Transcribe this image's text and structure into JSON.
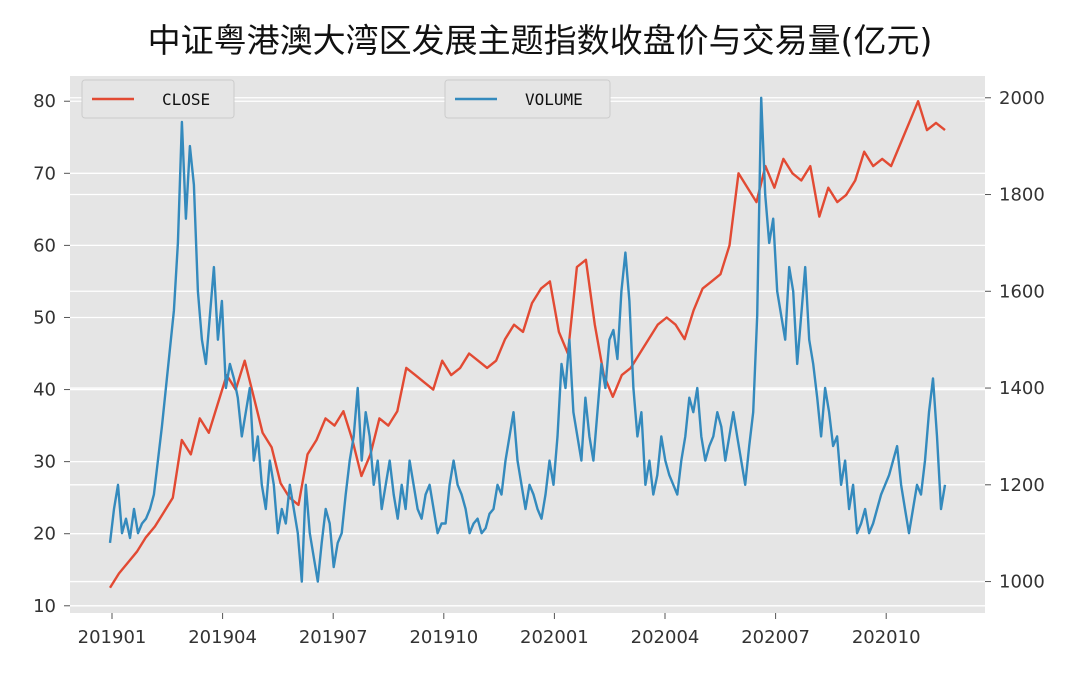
{
  "chart_data": {
    "type": "line",
    "title": "中证粤港澳大湾区发展主题指数收盘价与交易量(亿元)",
    "xlabel": "",
    "ylabel_left": "",
    "ylabel_right": "",
    "x_tick_labels": [
      "201901",
      "201904",
      "201907",
      "201910",
      "202001",
      "202004",
      "202007",
      "202010"
    ],
    "y_left_ticks": [
      10,
      20,
      30,
      40,
      50,
      60,
      70,
      80
    ],
    "y_right_ticks": [
      1000,
      1200,
      1400,
      1600,
      1800,
      2000
    ],
    "ylim_left": [
      9,
      83.5
    ],
    "ylim_right": [
      935,
      2045
    ],
    "legend": [
      {
        "label": "CLOSE",
        "position": "top-left"
      },
      {
        "label": "VOLUME",
        "position": "top-center"
      }
    ],
    "grid": true,
    "colors": {
      "close": "#E24A33",
      "volume": "#348ABD",
      "background": "#E5E5E5",
      "grid": "#FFFFFF"
    },
    "x_domain": [
      "2019-01",
      "2020-12"
    ],
    "series": [
      {
        "name": "CLOSE",
        "axis": "left",
        "color": "#E24A33",
        "x": [
          "2019-01",
          "2019-01",
          "2019-02",
          "2019-02",
          "2019-02",
          "2019-02",
          "2019-03",
          "2019-03",
          "2019-03",
          "2019-03",
          "2019-04",
          "2019-04",
          "2019-04",
          "2019-04",
          "2019-05",
          "2019-05",
          "2019-05",
          "2019-05",
          "2019-06",
          "2019-06",
          "2019-06",
          "2019-06",
          "2019-07",
          "2019-07",
          "2019-07",
          "2019-07",
          "2019-08",
          "2019-08",
          "2019-08",
          "2019-08",
          "2019-09",
          "2019-09",
          "2019-09",
          "2019-09",
          "2019-10",
          "2019-10",
          "2019-10",
          "2019-10",
          "2019-11",
          "2019-11",
          "2019-11",
          "2019-11",
          "2019-12",
          "2019-12",
          "2019-12",
          "2019-12",
          "2020-01",
          "2020-01",
          "2020-01",
          "2020-01",
          "2020-02",
          "2020-02",
          "2020-02",
          "2020-02",
          "2020-03",
          "2020-03",
          "2020-03",
          "2020-03",
          "2020-04",
          "2020-04",
          "2020-04",
          "2020-04",
          "2020-05",
          "2020-05",
          "2020-05",
          "2020-05",
          "2020-06",
          "2020-06",
          "2020-06",
          "2020-06",
          "2020-07",
          "2020-07",
          "2020-07",
          "2020-07",
          "2020-08",
          "2020-08",
          "2020-08",
          "2020-08",
          "2020-09",
          "2020-09",
          "2020-09",
          "2020-09",
          "2020-10",
          "2020-10",
          "2020-10",
          "2020-10",
          "2020-11",
          "2020-11",
          "2020-11",
          "2020-11",
          "2020-12",
          "2020-12",
          "2020-12",
          "2020-12"
        ],
        "values": [
          12.5,
          14.5,
          16,
          17.5,
          19.5,
          21,
          23,
          25,
          33,
          31,
          36,
          34,
          38,
          42,
          40,
          44,
          39,
          34,
          32,
          27,
          25,
          24,
          31,
          33,
          36,
          35,
          37,
          33,
          28,
          31,
          36,
          35,
          37,
          43,
          42,
          41,
          40,
          44,
          42,
          43,
          45,
          44,
          43,
          44,
          47,
          49,
          48,
          52,
          54,
          55,
          48,
          45,
          57,
          58,
          49,
          42,
          39,
          42,
          43,
          45,
          47,
          49,
          50,
          49,
          47,
          51,
          54,
          55,
          56,
          60,
          70,
          68,
          66,
          71,
          68,
          72,
          70,
          69,
          71,
          64,
          68,
          66,
          67,
          69,
          73,
          71,
          72,
          71,
          74,
          77,
          80,
          76,
          77,
          76
        ],
        "note_x_padded": true
      },
      {
        "name": "VOLUME",
        "axis": "right",
        "color": "#348ABD",
        "values": [
          1080,
          1150,
          1200,
          1100,
          1130,
          1090,
          1150,
          1100,
          1120,
          1130,
          1150,
          1180,
          1250,
          1320,
          1400,
          1480,
          1560,
          1700,
          1950,
          1750,
          1900,
          1820,
          1600,
          1500,
          1450,
          1550,
          1650,
          1500,
          1580,
          1400,
          1450,
          1420,
          1380,
          1300,
          1350,
          1400,
          1250,
          1300,
          1200,
          1150,
          1250,
          1200,
          1100,
          1150,
          1120,
          1200,
          1150,
          1100,
          1000,
          1200,
          1100,
          1050,
          1000,
          1080,
          1150,
          1120,
          1030,
          1080,
          1100,
          1180,
          1250,
          1300,
          1400,
          1250,
          1350,
          1300,
          1200,
          1250,
          1150,
          1200,
          1250,
          1180,
          1130,
          1200,
          1150,
          1250,
          1200,
          1150,
          1130,
          1180,
          1200,
          1150,
          1100,
          1120,
          1120,
          1200,
          1250,
          1200,
          1180,
          1150,
          1100,
          1120,
          1130,
          1100,
          1110,
          1140,
          1150,
          1200,
          1180,
          1250,
          1300,
          1350,
          1250,
          1200,
          1150,
          1200,
          1180,
          1150,
          1130,
          1180,
          1250,
          1200,
          1300,
          1450,
          1400,
          1500,
          1350,
          1300,
          1250,
          1380,
          1300,
          1250,
          1350,
          1450,
          1400,
          1500,
          1520,
          1460,
          1600,
          1680,
          1580,
          1400,
          1300,
          1350,
          1200,
          1250,
          1180,
          1220,
          1300,
          1250,
          1220,
          1200,
          1180,
          1250,
          1300,
          1380,
          1350,
          1400,
          1300,
          1250,
          1280,
          1300,
          1350,
          1320,
          1250,
          1300,
          1350,
          1300,
          1250,
          1200,
          1280,
          1350,
          1550,
          2000,
          1800,
          1700,
          1750,
          1600,
          1550,
          1500,
          1650,
          1600,
          1450,
          1550,
          1650,
          1500,
          1450,
          1380,
          1300,
          1400,
          1350,
          1280,
          1300,
          1200,
          1250,
          1150,
          1200,
          1100,
          1120,
          1150,
          1100,
          1120,
          1150,
          1180,
          1200,
          1220,
          1250,
          1280,
          1200,
          1150,
          1100,
          1150,
          1200,
          1180,
          1250,
          1350,
          1420,
          1300,
          1150,
          1200
        ]
      }
    ]
  }
}
